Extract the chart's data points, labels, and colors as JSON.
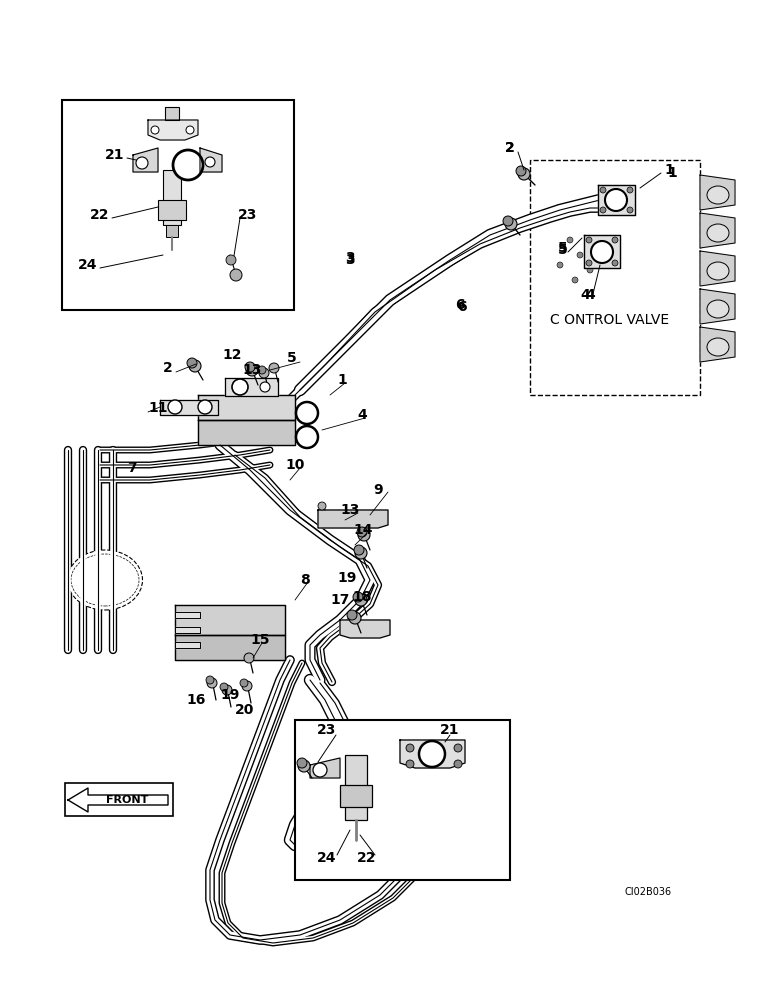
{
  "bg_color": "#ffffff",
  "line_color": "#000000",
  "fig_width": 7.6,
  "fig_height": 10.0,
  "dpi": 100,
  "watermark": "CI02B036",
  "control_valve_label": "C ONTROL VALVE",
  "front_label": "FRONT"
}
